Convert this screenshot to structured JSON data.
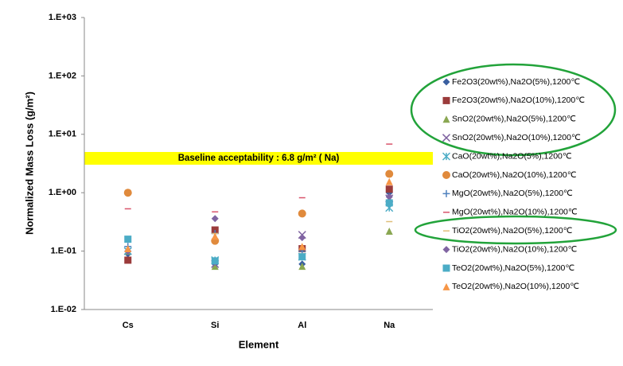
{
  "chart_data": {
    "type": "scatter",
    "x_label": "Element",
    "y_label": "Normalized Mass Loss (g/m²)",
    "annotation": "Baseline acceptability : 6.8 g/m² ( Na)",
    "log_y": true,
    "categories": [
      "Cs",
      "Si",
      "Al",
      "Na"
    ],
    "ylim": [
      0.01,
      1000
    ],
    "yticks": [
      {
        "value": 0.01,
        "label": "1.E-02"
      },
      {
        "value": 0.1,
        "label": "1.E-01"
      },
      {
        "value": 1,
        "label": "1.E+00"
      },
      {
        "value": 10,
        "label": "1.E+01"
      },
      {
        "value": 100,
        "label": "1.E+02"
      },
      {
        "value": 1000,
        "label": "1.E+03"
      }
    ],
    "series": [
      {
        "name": "Fe2O3(20wt%),Na2O(5%),1200℃",
        "color": "#3a5fa0",
        "marker": "diamond",
        "values": [
          0.09,
          0.06,
          0.06,
          1.0
        ]
      },
      {
        "name": "Fe2O3(20wt%),Na2O(10%),1200℃",
        "color": "#9b3b3b",
        "marker": "square",
        "values": [
          0.07,
          0.23,
          0.11,
          1.15
        ]
      },
      {
        "name": "SnO2(20wt%),Na2O(5%),1200℃",
        "color": "#8aa752",
        "marker": "triangle",
        "values": [
          0.1,
          0.055,
          0.055,
          0.22
        ]
      },
      {
        "name": "SnO2(20wt%),Na2O(10%),1200℃",
        "color": "#7e62a0",
        "marker": "x",
        "values": [
          0.1,
          0.06,
          0.19,
          0.8
        ]
      },
      {
        "name": "CaO(20wt%),Na2O(5%),1200℃",
        "color": "#4bacc6",
        "marker": "star",
        "values": [
          0.1,
          0.07,
          0.08,
          0.55
        ]
      },
      {
        "name": "CaO(20wt%),Na2O(10%),1200℃",
        "color": "#e08a3c",
        "marker": "circle",
        "values": [
          1.0,
          0.15,
          0.44,
          2.1
        ]
      },
      {
        "name": "MgO(20wt%),Na2O(5%),1200℃",
        "color": "#4f81bd",
        "marker": "plus",
        "values": [
          0.12,
          0.2,
          0.1,
          0.7
        ]
      },
      {
        "name": "MgO(20wt%),Na2O(10%),1200℃",
        "color": "#d9546b",
        "marker": "dash",
        "values": [
          0.53,
          0.47,
          0.82,
          6.8
        ]
      },
      {
        "name": "TiO2(20wt%),Na2O(5%),1200℃",
        "color": "#e0bf7a",
        "marker": "dash",
        "values": [
          0.1,
          0.2,
          0.09,
          0.32
        ]
      },
      {
        "name": "TiO2(20wt%),Na2O(10%),1200℃",
        "color": "#8064a2",
        "marker": "diamond",
        "values": [
          0.1,
          0.36,
          0.17,
          0.85
        ]
      },
      {
        "name": "TeO2(20wt%),Na2O(5%),1200℃",
        "color": "#4bacc6",
        "marker": "square",
        "values": [
          0.16,
          0.068,
          0.08,
          0.67
        ]
      },
      {
        "name": "TeO2(20wt%),Na2O(10%),1200℃",
        "color": "#f79646",
        "marker": "triangle",
        "values": [
          0.11,
          0.18,
          0.12,
          1.55
        ]
      }
    ]
  }
}
